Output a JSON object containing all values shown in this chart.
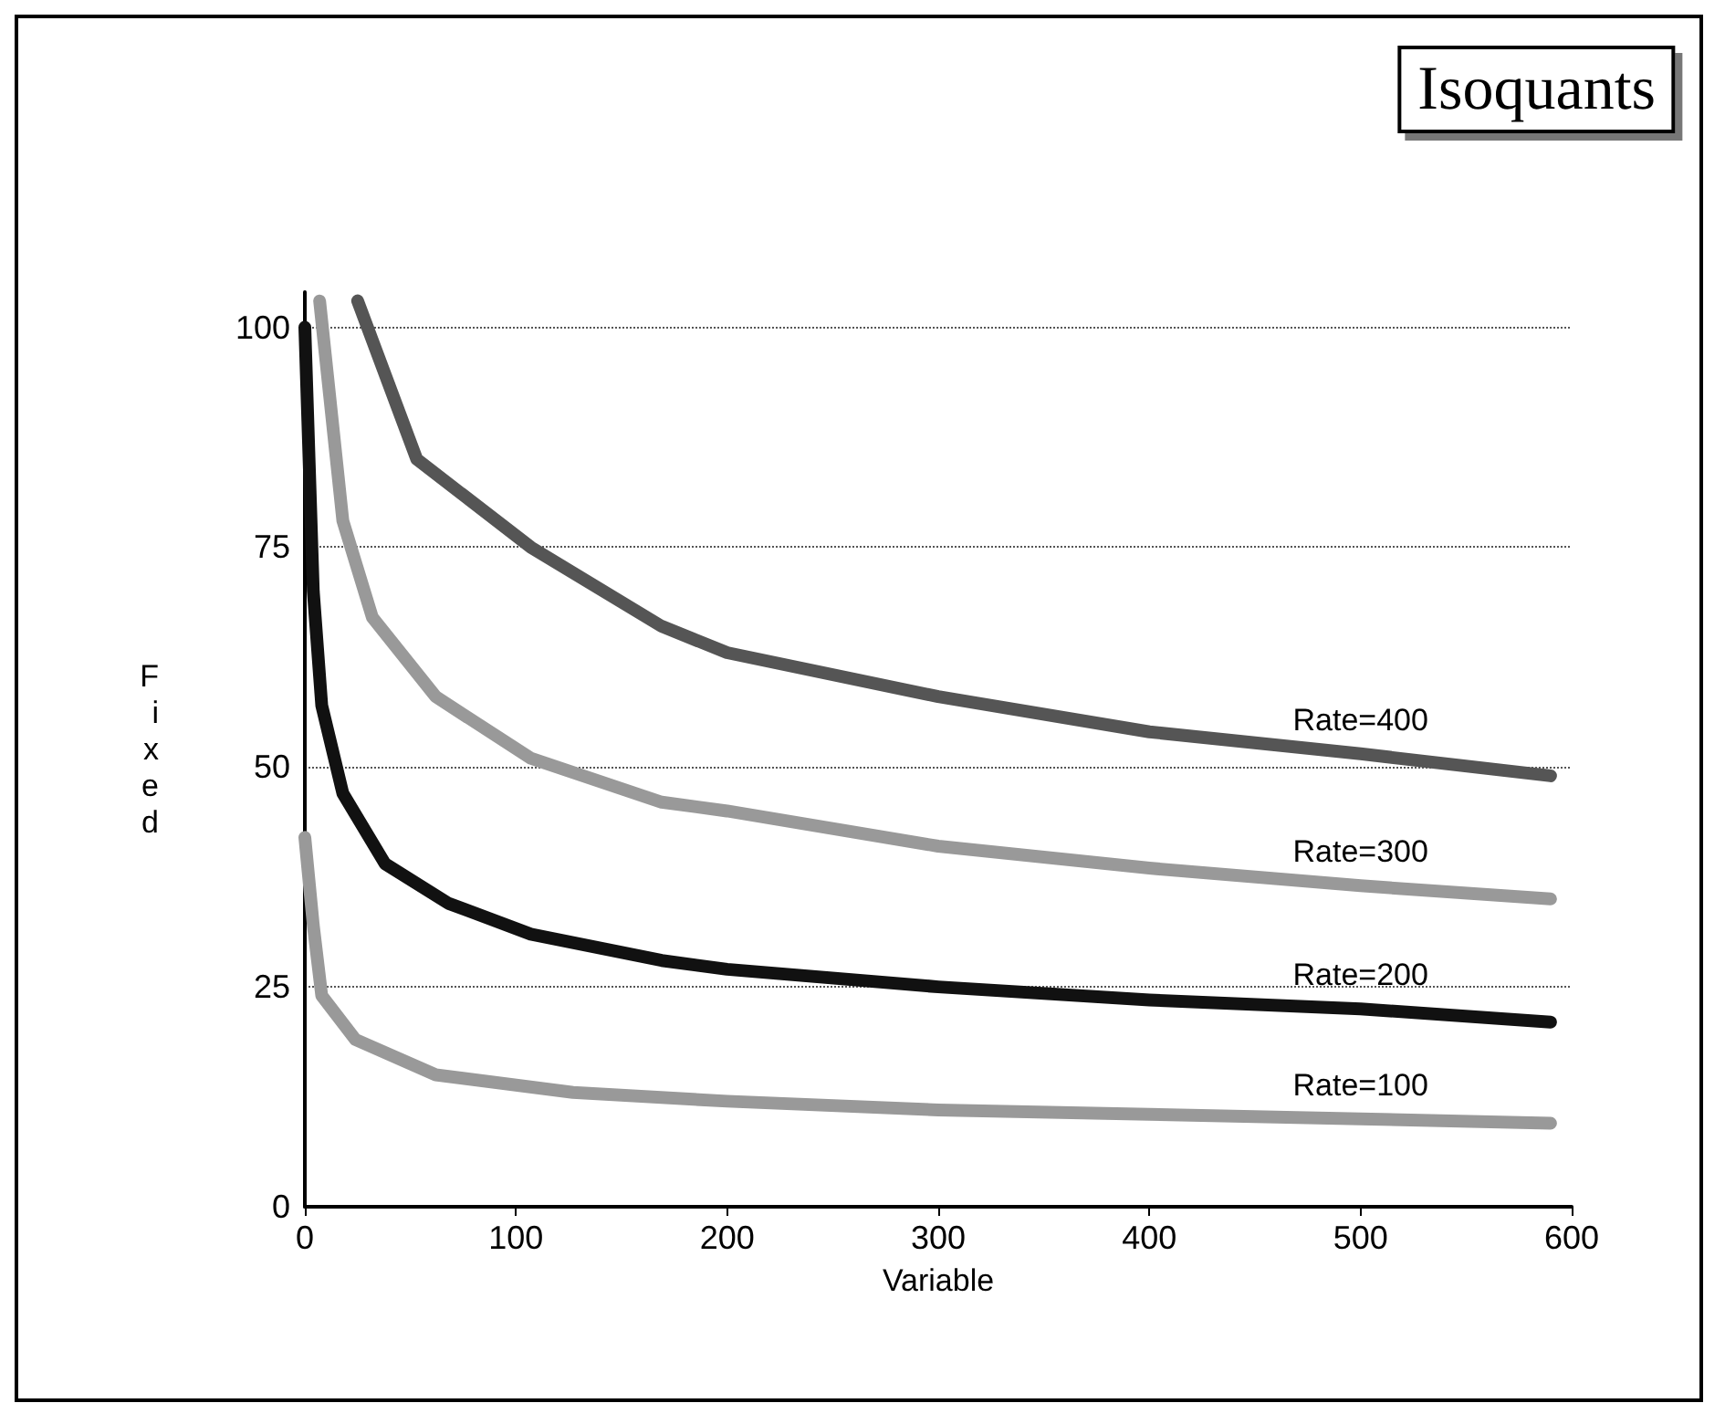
{
  "chart_data": {
    "type": "line",
    "title": "Isoquants",
    "xlabel": "Variable",
    "ylabel": "Fixed",
    "xlim": [
      0,
      600
    ],
    "ylim": [
      0,
      104
    ],
    "xticks": [
      0,
      100,
      200,
      300,
      400,
      500,
      600
    ],
    "yticks": [
      0,
      25,
      50,
      75,
      100
    ],
    "grid": "y",
    "legend": false,
    "marker": "none",
    "line_style": "solid",
    "series": [
      {
        "name": "Rate=400",
        "color": "#555555",
        "x": [
          25,
          53,
          107,
          169,
          200,
          300,
          400,
          500,
          590
        ],
        "values": [
          103,
          85,
          75,
          66,
          63,
          58,
          54,
          51.5,
          49
        ]
      },
      {
        "name": "Rate=300",
        "color": "#999999",
        "x": [
          7,
          18,
          32,
          62,
          107,
          169,
          200,
          300,
          400,
          500,
          590
        ],
        "values": [
          103,
          78,
          67,
          58,
          51,
          46,
          45,
          41,
          38.5,
          36.5,
          35
        ]
      },
      {
        "name": "Rate=200",
        "color": "#111111",
        "x": [
          0,
          4,
          8,
          18,
          38,
          68,
          107,
          169,
          200,
          300,
          400,
          500,
          590
        ],
        "values": [
          100,
          70,
          57,
          47,
          39,
          34.5,
          31,
          28,
          27,
          25,
          23.5,
          22.5,
          21
        ]
      },
      {
        "name": "Rate=100",
        "color": "#999999",
        "x": [
          0,
          4,
          8,
          24,
          62,
          127,
          200,
          300,
          400,
          500,
          590
        ],
        "values": [
          42,
          32,
          24,
          19,
          15,
          13,
          12,
          11,
          10.5,
          10,
          9.5
        ]
      }
    ]
  }
}
